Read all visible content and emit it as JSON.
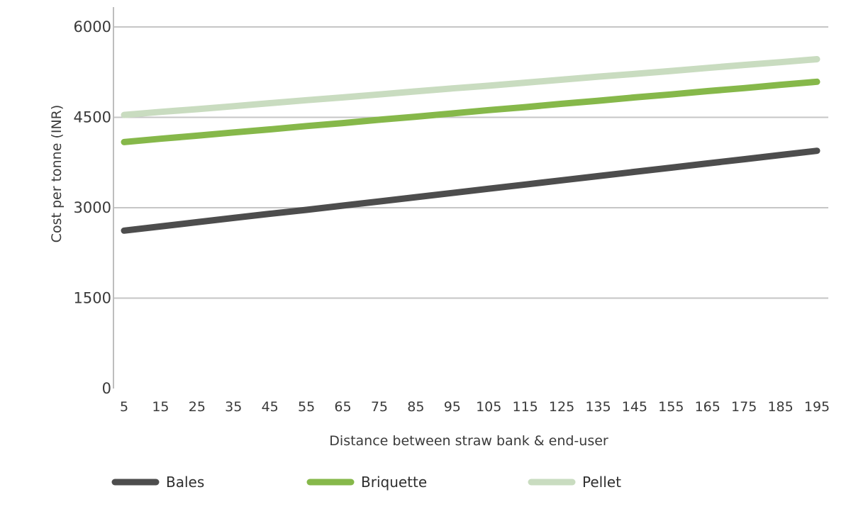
{
  "chart_data": {
    "type": "line",
    "title": "",
    "xlabel": "Distance between straw bank & end-user",
    "ylabel": "Cost per tonne (INR)",
    "x": [
      5,
      15,
      25,
      35,
      45,
      55,
      65,
      75,
      85,
      95,
      105,
      115,
      125,
      135,
      145,
      155,
      165,
      175,
      185,
      195
    ],
    "x_tick_labels": [
      "5",
      "15",
      "25",
      "35",
      "45",
      "55",
      "65",
      "75",
      "85",
      "95",
      "105",
      "115",
      "125",
      "135",
      "145",
      "155",
      "165",
      "175",
      "185",
      "195"
    ],
    "ylim": [
      0,
      6000
    ],
    "y_ticks": [
      0,
      1500,
      3000,
      4500,
      6000
    ],
    "y_tick_labels": [
      "0",
      "1500",
      "3000",
      "4500",
      "6000"
    ],
    "grid": "horizontal",
    "legend_position": "bottom",
    "series": [
      {
        "name": "Bales",
        "color": "#4d4d4d",
        "values": [
          2620,
          2690,
          2760,
          2830,
          2900,
          2965,
          3035,
          3105,
          3175,
          3245,
          3315,
          3385,
          3455,
          3525,
          3595,
          3665,
          3735,
          3805,
          3875,
          3945
        ]
      },
      {
        "name": "Briquette",
        "color": "#86b84a",
        "values": [
          4090,
          4145,
          4195,
          4250,
          4300,
          4355,
          4405,
          4460,
          4510,
          4565,
          4620,
          4670,
          4725,
          4775,
          4830,
          4880,
          4935,
          4985,
          5040,
          5090
        ]
      },
      {
        "name": "Pellet",
        "color": "#c9dcc0",
        "values": [
          4540,
          4590,
          4635,
          4685,
          4735,
          4785,
          4830,
          4880,
          4930,
          4980,
          5025,
          5075,
          5125,
          5175,
          5220,
          5270,
          5320,
          5370,
          5415,
          5465
        ]
      }
    ]
  }
}
